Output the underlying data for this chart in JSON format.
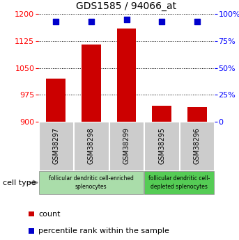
{
  "title": "GDS1585 / 94066_at",
  "samples": [
    "GSM38297",
    "GSM38298",
    "GSM38299",
    "GSM38295",
    "GSM38296"
  ],
  "counts": [
    1020,
    1115,
    1160,
    945,
    940
  ],
  "percentiles": [
    93,
    93,
    95,
    93,
    93
  ],
  "ylim_left": [
    900,
    1200
  ],
  "ylim_right": [
    0,
    100
  ],
  "yticks_left": [
    900,
    975,
    1050,
    1125,
    1200
  ],
  "yticks_right": [
    0,
    25,
    50,
    75,
    100
  ],
  "bar_color": "#cc0000",
  "dot_color": "#0000cc",
  "group1_label": "follicular dendritic cell-enriched\nsplenocytes",
  "group2_label": "follicular dendritic cell-\ndepleted splenocytes",
  "group1_indices": [
    0,
    1,
    2
  ],
  "group2_indices": [
    3,
    4
  ],
  "group1_color": "#aaddaa",
  "group2_color": "#55cc55",
  "cell_type_label": "cell type",
  "legend_count": "count",
  "legend_pct": "percentile rank within the sample",
  "bar_width": 0.55,
  "dot_size": 40
}
